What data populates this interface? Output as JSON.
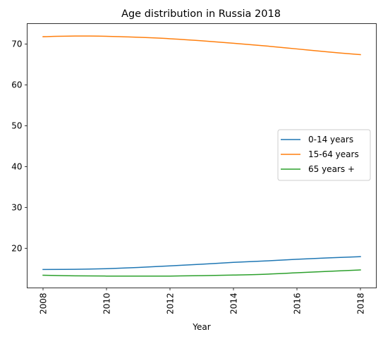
{
  "chart_data": {
    "type": "line",
    "title": "Age distribution in Russia 2018",
    "xlabel": "Year",
    "ylabel": "",
    "x": [
      2008,
      2009,
      2010,
      2011,
      2012,
      2013,
      2014,
      2015,
      2016,
      2017,
      2018
    ],
    "xticks": [
      "2008",
      "2010",
      "2012",
      "2014",
      "2016",
      "2018"
    ],
    "xtick_values": [
      2008,
      2010,
      2012,
      2014,
      2016,
      2018
    ],
    "yticks": [
      "20",
      "30",
      "40",
      "50",
      "60",
      "70"
    ],
    "ytick_values": [
      20,
      30,
      40,
      50,
      60,
      70
    ],
    "xlim": [
      2007.5,
      2018.5
    ],
    "ylim": [
      10.3,
      75.0
    ],
    "grid": false,
    "legend_position": "center-right",
    "series": [
      {
        "name": "0-14 years",
        "color": "#1f77b4",
        "values": [
          14.8,
          14.85,
          15.0,
          15.3,
          15.7,
          16.1,
          16.55,
          16.9,
          17.3,
          17.65,
          17.95
        ]
      },
      {
        "name": "15-64 years",
        "color": "#ff7f0e",
        "values": [
          71.8,
          71.95,
          71.9,
          71.65,
          71.3,
          70.8,
          70.2,
          69.55,
          68.8,
          68.05,
          67.4
        ]
      },
      {
        "name": "65 years +",
        "color": "#2ca02c",
        "values": [
          13.4,
          13.25,
          13.2,
          13.2,
          13.2,
          13.3,
          13.45,
          13.65,
          14.0,
          14.35,
          14.7
        ]
      }
    ]
  }
}
